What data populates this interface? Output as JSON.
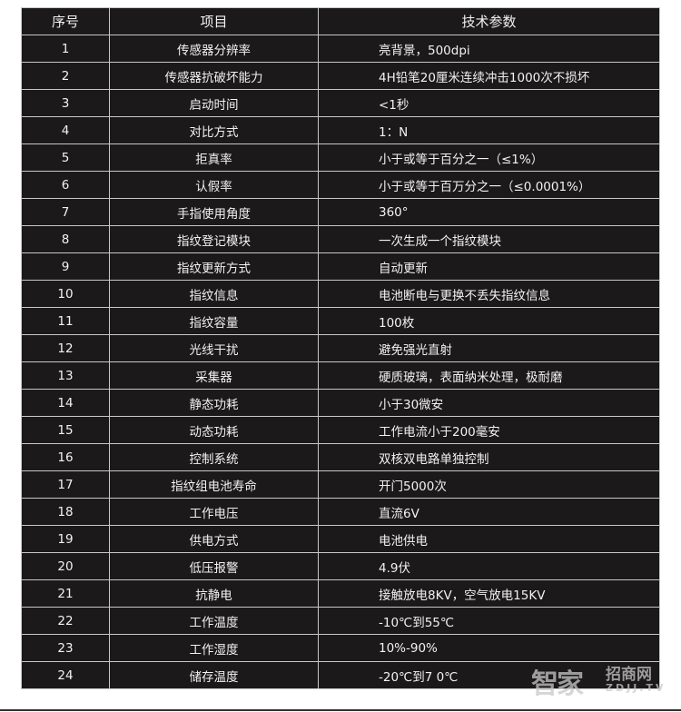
{
  "headers": [
    "序号",
    "项目",
    "技术参数"
  ],
  "rows": [
    [
      "1",
      "传感器分辨率",
      "亮背景，500dpi"
    ],
    [
      "2",
      "传感器抗破坏能力",
      "4H铅笔20厘米连续冲击1000次不损坏"
    ],
    [
      "3",
      "启动时间",
      "<1秒"
    ],
    [
      "4",
      "对比方式",
      "1：N"
    ],
    [
      "5",
      "拒真率",
      "小于或等于百分之一（≤1%）"
    ],
    [
      "6",
      "认假率",
      "小于或等于百万分之一（≤0.0001%）"
    ],
    [
      "7",
      "手指使用角度",
      "360°"
    ],
    [
      "8",
      "指纹登记模块",
      "一次生成一个指纹模块"
    ],
    [
      "9",
      "指纹更新方式",
      "自动更新"
    ],
    [
      "10",
      "指纹信息",
      "电池断电与更换不丢失指纹信息"
    ],
    [
      "11",
      "指纹容量",
      "100枚"
    ],
    [
      "12",
      "光线干扰",
      "避免强光直射"
    ],
    [
      "13",
      "采集器",
      "硬质玻璃，表面纳米处理，极耐磨"
    ],
    [
      "14",
      "静态功耗",
      "小于30微安"
    ],
    [
      "15",
      "动态功耗",
      "工作电流小于200毫安"
    ],
    [
      "16",
      "控制系统",
      "双核双电路单独控制"
    ],
    [
      "17",
      "指纹组电池寿命",
      "开门5000次"
    ],
    [
      "18",
      "工作电压",
      "直流6V"
    ],
    [
      "19",
      "供电方式",
      "电池供电"
    ],
    [
      "20",
      "低压报警",
      "4.9伏"
    ],
    [
      "21",
      "抗静电",
      "接触放电8KV，空气放电15KV"
    ],
    [
      "22",
      "工作温度",
      "-10℃到55℃"
    ],
    [
      "23",
      "工作湿度",
      "10%-90%"
    ],
    [
      "24",
      "储存温度",
      "-20℃到7 0℃"
    ]
  ],
  "watermark": {
    "main": "智家",
    "sub": "招商网",
    "en": "ZDJJ.TV"
  }
}
